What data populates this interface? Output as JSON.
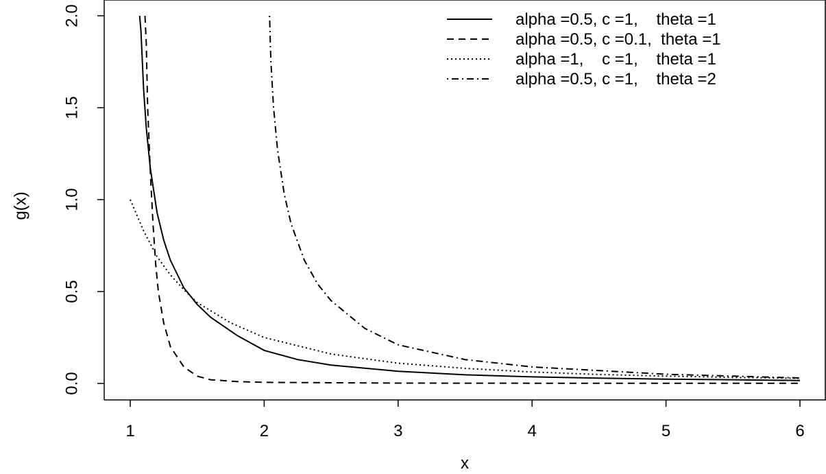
{
  "chart_data": {
    "type": "line",
    "title": "",
    "xlabel": "x",
    "ylabel": "g(x)",
    "xlim": [
      1,
      6
    ],
    "ylim": [
      0,
      2.0
    ],
    "xticks": [
      1,
      2,
      3,
      4,
      5,
      6
    ],
    "xtick_labels": [
      "1",
      "2",
      "3",
      "4",
      "5",
      "6"
    ],
    "yticks": [
      0,
      0.5,
      1.0,
      1.5,
      2.0
    ],
    "ytick_labels": [
      "0.0",
      "0.5",
      "1.0",
      "1.5",
      "2.0"
    ],
    "grid": false,
    "legend_position": "top-right",
    "series": [
      {
        "name": "alpha =0.5, c =1,    theta =1",
        "linestyle": "solid",
        "color": "#000000",
        "x": [
          1.07,
          1.08,
          1.1,
          1.12,
          1.15,
          1.2,
          1.25,
          1.3,
          1.4,
          1.5,
          1.6,
          1.8,
          2.0,
          2.25,
          2.5,
          3.0,
          3.5,
          4.0,
          4.5,
          5.0,
          5.5,
          6.0
        ],
        "y": [
          2.0,
          1.92,
          1.6,
          1.39,
          1.17,
          0.93,
          0.78,
          0.67,
          0.52,
          0.43,
          0.36,
          0.26,
          0.18,
          0.13,
          0.1,
          0.066,
          0.047,
          0.036,
          0.029,
          0.023,
          0.02,
          0.016
        ]
      },
      {
        "name": "alpha =0.5, c =0.1,  theta =1",
        "linestyle": "dashed",
        "color": "#000000",
        "x": [
          1.11,
          1.12,
          1.13,
          1.15,
          1.17,
          1.19,
          1.21,
          1.25,
          1.3,
          1.4,
          1.5,
          1.6,
          1.8,
          2.0,
          3.0,
          4.0,
          5.0,
          6.0
        ],
        "y": [
          2.0,
          1.85,
          1.5,
          1.15,
          0.87,
          0.65,
          0.5,
          0.33,
          0.2,
          0.09,
          0.04,
          0.02,
          0.01,
          0.006,
          0.002,
          0.001,
          0.001,
          0.001
        ]
      },
      {
        "name": "alpha =1,    c =1,    theta =1",
        "linestyle": "dotted",
        "color": "#000000",
        "x": [
          1.0,
          1.1,
          1.2,
          1.3,
          1.4,
          1.5,
          1.75,
          2.0,
          2.5,
          3.0,
          3.5,
          4.0,
          4.5,
          5.0,
          5.5,
          6.0
        ],
        "y": [
          1.0,
          0.83,
          0.69,
          0.59,
          0.51,
          0.44,
          0.33,
          0.25,
          0.16,
          0.11,
          0.082,
          0.0625,
          0.049,
          0.04,
          0.033,
          0.028
        ]
      },
      {
        "name": "alpha =0.5, c =1,    theta =2",
        "linestyle": "dotdash",
        "color": "#000000",
        "x": [
          2.04,
          2.05,
          2.07,
          2.1,
          2.15,
          2.2,
          2.3,
          2.4,
          2.5,
          2.75,
          3.0,
          3.5,
          4.0,
          4.5,
          5.0,
          5.5,
          6.0
        ],
        "y": [
          2.0,
          1.75,
          1.5,
          1.27,
          1.03,
          0.87,
          0.67,
          0.54,
          0.45,
          0.3,
          0.21,
          0.13,
          0.09,
          0.07,
          0.05,
          0.04,
          0.03
        ]
      }
    ]
  }
}
